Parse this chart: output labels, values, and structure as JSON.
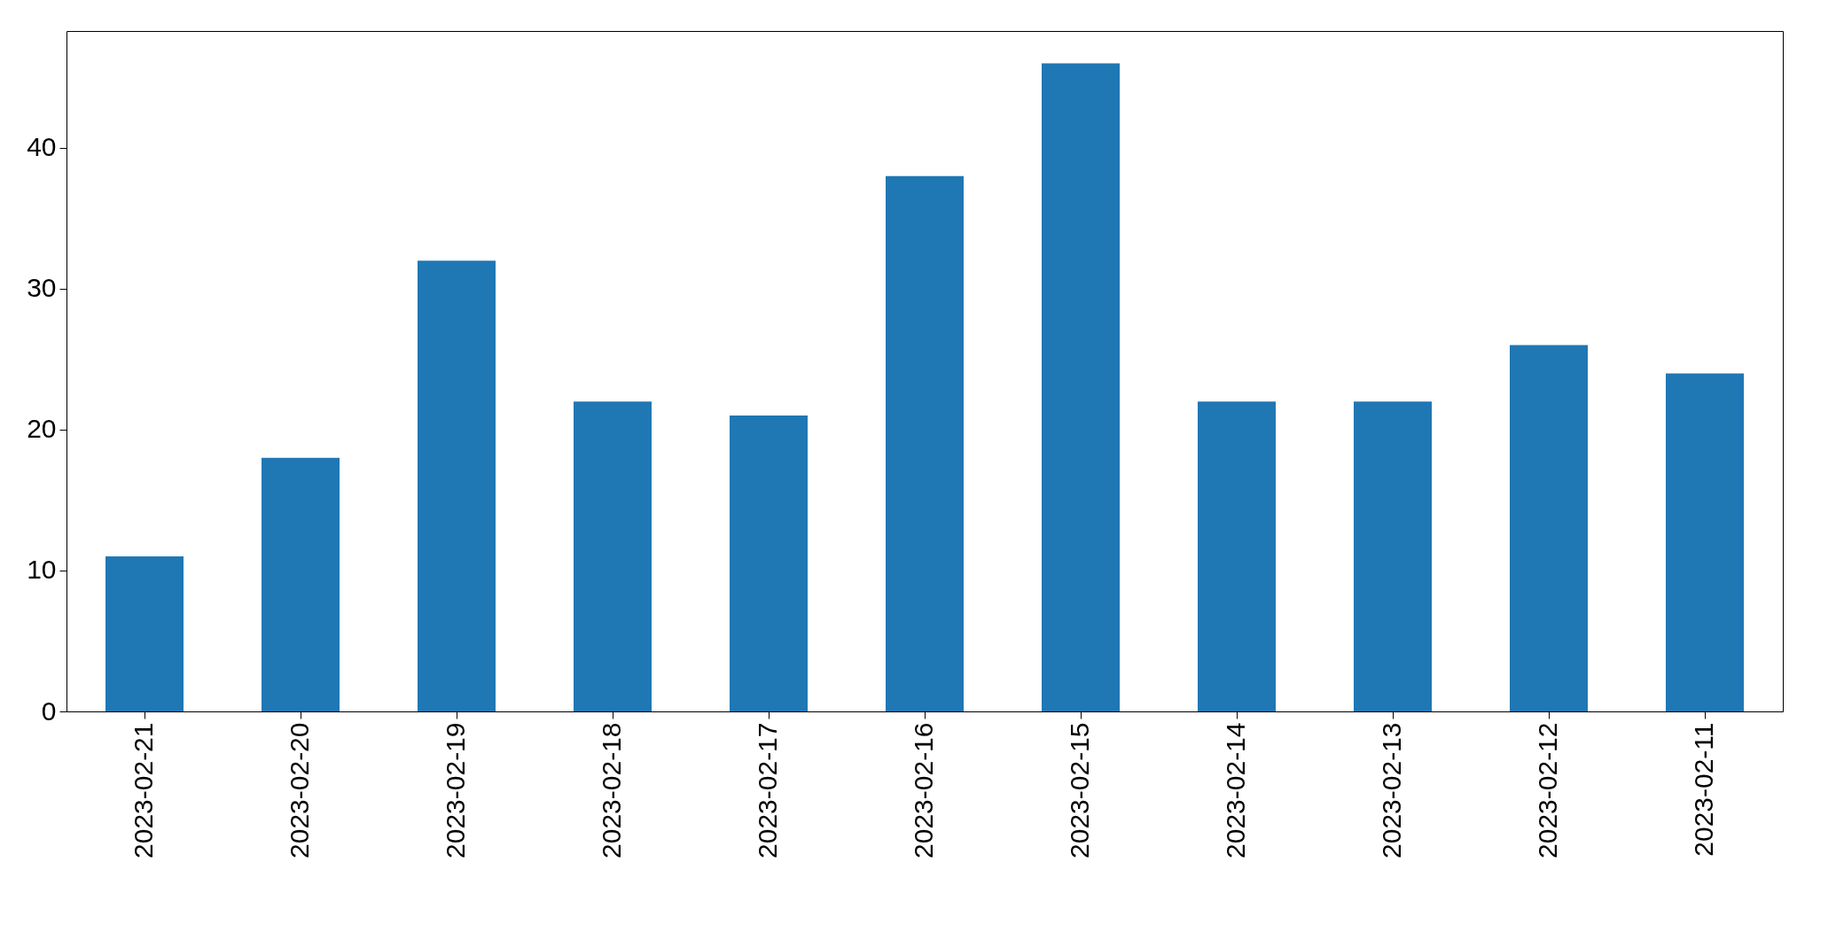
{
  "chart_data": {
    "type": "bar",
    "categories": [
      "2023-02-21",
      "2023-02-20",
      "2023-02-19",
      "2023-02-18",
      "2023-02-17",
      "2023-02-16",
      "2023-02-15",
      "2023-02-14",
      "2023-02-13",
      "2023-02-12",
      "2023-02-11"
    ],
    "values": [
      11,
      18,
      32,
      22,
      21,
      38,
      46,
      22,
      22,
      26,
      24
    ],
    "color": "#1f77b4",
    "ylim": [
      0,
      48.3
    ],
    "yticks": [
      0,
      10,
      20,
      30,
      40
    ]
  }
}
